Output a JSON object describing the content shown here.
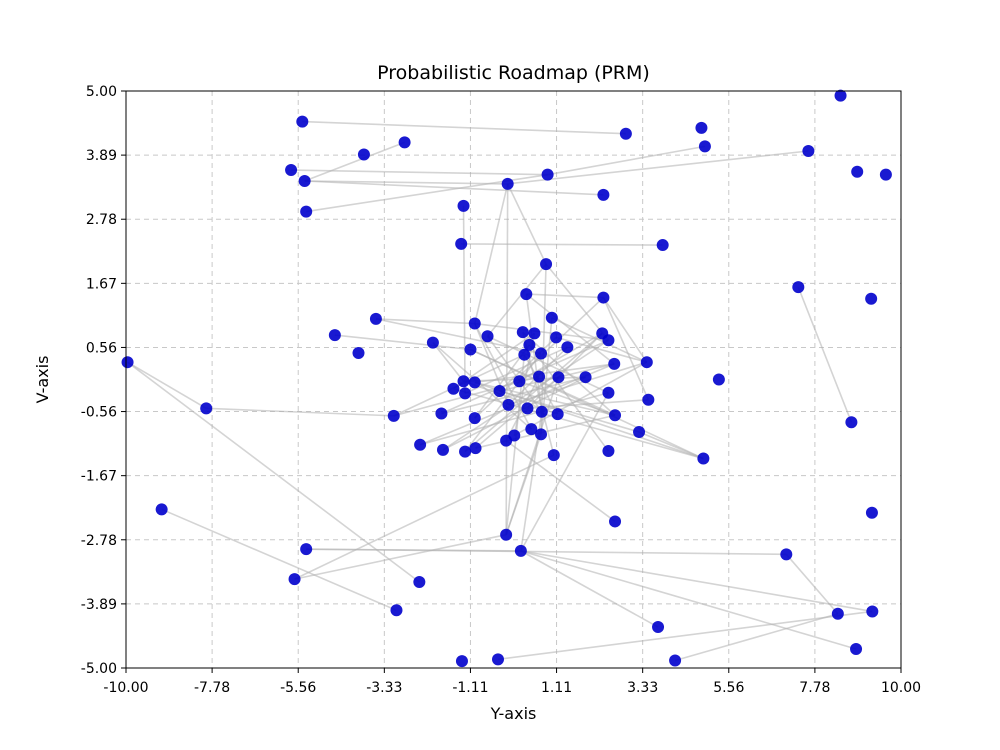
{
  "chart_data": {
    "type": "scatter",
    "title": "Probabilistic Roadmap (PRM)",
    "xlabel": "Y-axis",
    "ylabel": "V-axis",
    "xlim": [
      -10,
      10
    ],
    "ylim": [
      -5,
      5
    ],
    "grid": true,
    "x_tick_labels": [
      "-10.00",
      "-7.78",
      "-5.56",
      "-3.33",
      "-1.11",
      "1.11",
      "3.33",
      "5.56",
      "7.78",
      "10.00"
    ],
    "y_tick_labels": [
      "-5.00",
      "-3.89",
      "-2.78",
      "-1.67",
      "-0.56",
      "0.56",
      "1.67",
      "2.78",
      "3.89",
      "5.00"
    ],
    "colors": {
      "node": "#0000cc",
      "edge": "#b0b0b0",
      "grid": "#c8c8c8"
    },
    "nodes": [
      [
        -5.45,
        4.47
      ],
      [
        -2.81,
        4.11
      ],
      [
        -3.86,
        3.9
      ],
      [
        2.9,
        4.26
      ],
      [
        4.85,
        4.36
      ],
      [
        4.94,
        4.04
      ],
      [
        7.61,
        3.96
      ],
      [
        8.44,
        4.92
      ],
      [
        8.87,
        3.6
      ],
      [
        9.61,
        3.55
      ],
      [
        -5.74,
        3.63
      ],
      [
        -5.39,
        3.44
      ],
      [
        -0.15,
        3.39
      ],
      [
        0.88,
        3.55
      ],
      [
        2.32,
        3.2
      ],
      [
        -5.35,
        2.91
      ],
      [
        -1.29,
        3.01
      ],
      [
        -1.35,
        2.35
      ],
      [
        3.85,
        2.33
      ],
      [
        0.84,
        2.0
      ],
      [
        7.35,
        1.6
      ],
      [
        9.23,
        1.4
      ],
      [
        0.33,
        1.48
      ],
      [
        2.32,
        1.42
      ],
      [
        -3.55,
        1.05
      ],
      [
        -4.61,
        0.77
      ],
      [
        -2.08,
        0.64
      ],
      [
        -4.0,
        0.46
      ],
      [
        -1.0,
        0.97
      ],
      [
        -0.67,
        0.75
      ],
      [
        -1.11,
        0.52
      ],
      [
        0.24,
        0.82
      ],
      [
        0.41,
        0.6
      ],
      [
        0.54,
        0.8
      ],
      [
        0.99,
        1.07
      ],
      [
        1.1,
        0.73
      ],
      [
        0.28,
        0.43
      ],
      [
        0.71,
        0.45
      ],
      [
        1.39,
        0.56
      ],
      [
        2.29,
        0.8
      ],
      [
        2.45,
        0.68
      ],
      [
        2.6,
        0.27
      ],
      [
        3.44,
        0.3
      ],
      [
        5.3,
        0.0
      ],
      [
        -9.96,
        0.3
      ],
      [
        -7.93,
        -0.5
      ],
      [
        -1.29,
        -0.03
      ],
      [
        -1.0,
        -0.05
      ],
      [
        -1.55,
        -0.16
      ],
      [
        -1.25,
        -0.24
      ],
      [
        -0.36,
        -0.2
      ],
      [
        0.15,
        -0.03
      ],
      [
        0.66,
        0.05
      ],
      [
        1.16,
        0.04
      ],
      [
        1.86,
        0.04
      ],
      [
        2.45,
        -0.23
      ],
      [
        3.48,
        -0.35
      ],
      [
        -3.09,
        -0.63
      ],
      [
        -1.86,
        -0.59
      ],
      [
        -1.0,
        -0.67
      ],
      [
        -0.13,
        -0.44
      ],
      [
        0.36,
        -0.5
      ],
      [
        0.73,
        -0.56
      ],
      [
        1.14,
        -0.6
      ],
      [
        2.62,
        -0.62
      ],
      [
        3.24,
        -0.91
      ],
      [
        8.72,
        -0.74
      ],
      [
        -2.41,
        -1.13
      ],
      [
        -1.82,
        -1.22
      ],
      [
        -1.25,
        -1.25
      ],
      [
        -0.98,
        -1.19
      ],
      [
        -0.19,
        -1.06
      ],
      [
        0.02,
        -0.97
      ],
      [
        0.46,
        -0.86
      ],
      [
        0.71,
        -0.95
      ],
      [
        1.04,
        -1.31
      ],
      [
        2.45,
        -1.24
      ],
      [
        4.9,
        -1.37
      ],
      [
        -9.08,
        -2.25
      ],
      [
        -5.35,
        -2.94
      ],
      [
        -0.19,
        -2.69
      ],
      [
        0.19,
        -2.97
      ],
      [
        2.62,
        -2.46
      ],
      [
        7.04,
        -3.03
      ],
      [
        9.25,
        -2.31
      ],
      [
        -5.65,
        -3.46
      ],
      [
        -2.43,
        -3.51
      ],
      [
        -3.02,
        -4.0
      ],
      [
        3.73,
        -4.29
      ],
      [
        8.37,
        -4.06
      ],
      [
        9.26,
        -4.02
      ],
      [
        8.84,
        -4.67
      ],
      [
        -1.33,
        -4.88
      ],
      [
        -0.4,
        -4.85
      ],
      [
        4.17,
        -4.87
      ]
    ],
    "edges": [
      [
        0,
        3
      ],
      [
        1,
        11
      ],
      [
        10,
        13
      ],
      [
        11,
        12
      ],
      [
        11,
        14
      ],
      [
        15,
        13
      ],
      [
        12,
        6
      ],
      [
        13,
        5
      ],
      [
        17,
        18
      ],
      [
        12,
        19
      ],
      [
        22,
        23
      ],
      [
        22,
        41
      ],
      [
        24,
        28
      ],
      [
        25,
        30
      ],
      [
        26,
        46
      ],
      [
        28,
        12
      ],
      [
        16,
        49
      ],
      [
        19,
        40
      ],
      [
        34,
        42
      ],
      [
        35,
        42
      ],
      [
        23,
        42
      ],
      [
        23,
        56
      ],
      [
        20,
        66
      ],
      [
        32,
        76
      ],
      [
        44,
        45
      ],
      [
        44,
        86
      ],
      [
        45,
        57
      ],
      [
        57,
        52
      ],
      [
        58,
        40
      ],
      [
        59,
        23
      ],
      [
        67,
        55
      ],
      [
        68,
        54
      ],
      [
        69,
        39
      ],
      [
        70,
        64
      ],
      [
        77,
        47
      ],
      [
        77,
        65
      ],
      [
        71,
        82
      ],
      [
        78,
        87
      ],
      [
        79,
        81
      ],
      [
        79,
        83
      ],
      [
        80,
        12
      ],
      [
        81,
        91
      ],
      [
        81,
        90
      ],
      [
        85,
        75
      ],
      [
        85,
        80
      ],
      [
        88,
        81
      ],
      [
        89,
        83
      ],
      [
        93,
        90
      ],
      [
        94,
        89
      ],
      [
        74,
        80
      ],
      [
        62,
        81
      ],
      [
        36,
        80
      ],
      [
        55,
        81
      ],
      [
        53,
        80
      ],
      [
        30,
        64
      ],
      [
        31,
        64
      ],
      [
        28,
        40
      ],
      [
        29,
        55
      ],
      [
        47,
        64
      ],
      [
        48,
        77
      ],
      [
        50,
        65
      ],
      [
        51,
        39
      ],
      [
        60,
        42
      ],
      [
        61,
        56
      ],
      [
        63,
        36
      ],
      [
        73,
        28
      ],
      [
        72,
        42
      ],
      [
        26,
        73
      ],
      [
        30,
        77
      ],
      [
        46,
        63
      ],
      [
        47,
        41
      ],
      [
        49,
        38
      ],
      [
        33,
        48
      ],
      [
        35,
        50
      ],
      [
        37,
        69
      ],
      [
        52,
        71
      ],
      [
        53,
        70
      ],
      [
        54,
        58
      ],
      [
        61,
        39
      ],
      [
        62,
        29
      ],
      [
        33,
        72
      ],
      [
        34,
        74
      ],
      [
        38,
        60
      ],
      [
        41,
        67
      ],
      [
        40,
        68
      ],
      [
        22,
        62
      ],
      [
        31,
        75
      ],
      [
        32,
        59
      ],
      [
        36,
        57
      ],
      [
        37,
        24
      ],
      [
        51,
        64
      ],
      [
        60,
        28
      ],
      [
        19,
        29
      ],
      [
        19,
        74
      ],
      [
        46,
        54
      ],
      [
        50,
        41
      ]
    ]
  }
}
